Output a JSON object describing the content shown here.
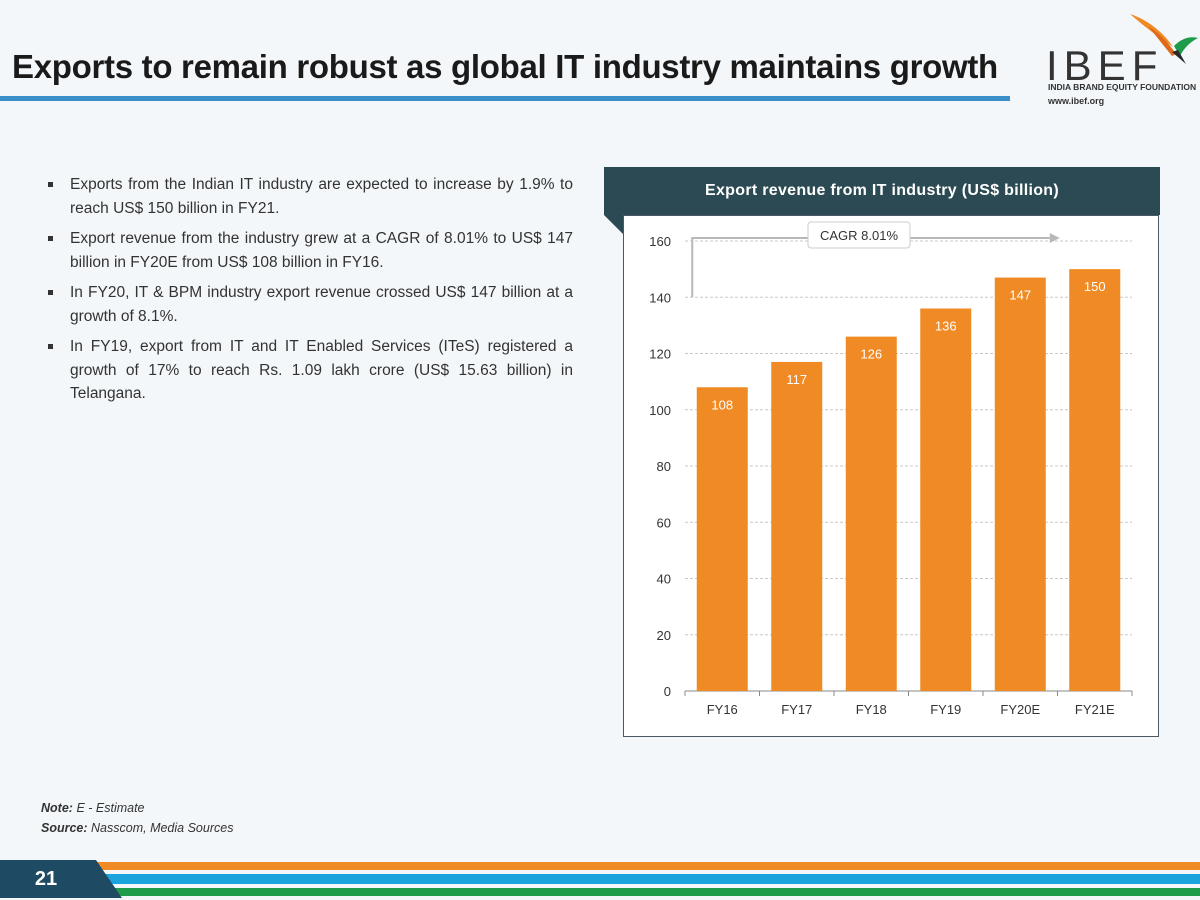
{
  "slide": {
    "title": "Exports to remain robust as global IT industry maintains growth",
    "page_number": "21"
  },
  "logo": {
    "wordmark": "IBEF",
    "subtitle": "INDIA BRAND EQUITY FOUNDATION",
    "url": "www.ibef.org"
  },
  "bullets": [
    "Exports from the Indian IT industry are expected to increase by 1.9% to reach US$ 150 billion in FY21.",
    "Export revenue from the industry grew at a CAGR of 8.01% to US$ 147 billion in FY20E from US$ 108 billion in FY16.",
    "In FY20, IT & BPM industry export revenue crossed US$ 147 billion at a growth of 8.1%.",
    "In FY19, export from IT and IT Enabled Services (ITeS) registered a growth of 17% to reach Rs. 1.09 lakh crore (US$ 15.63 billion) in Telangana."
  ],
  "notes": {
    "note_label": "Note:",
    "note_text": "E - Estimate",
    "source_label": "Source:",
    "source_text": "Nasscom, Media Sources"
  },
  "colors": {
    "bar": "#f08a24",
    "header": "#2b4a53",
    "accent_blue": "#3a8fc9",
    "footer_orange": "#f08a24",
    "footer_blue": "#1aa3dc",
    "footer_green": "#1f9c4a",
    "page_tab": "#1e4a63"
  },
  "chart_data": {
    "type": "bar",
    "title": "Export revenue from IT industry (US$ billion)",
    "categories": [
      "FY16",
      "FY17",
      "FY18",
      "FY19",
      "FY20E",
      "FY21E"
    ],
    "values": [
      108,
      117,
      126,
      136,
      147,
      150
    ],
    "ylim": [
      0,
      160
    ],
    "yticks": [
      0,
      20,
      40,
      60,
      80,
      100,
      120,
      140,
      160
    ],
    "grid": true,
    "annotation": "CAGR 8.01%",
    "xlabel": "",
    "ylabel": ""
  }
}
